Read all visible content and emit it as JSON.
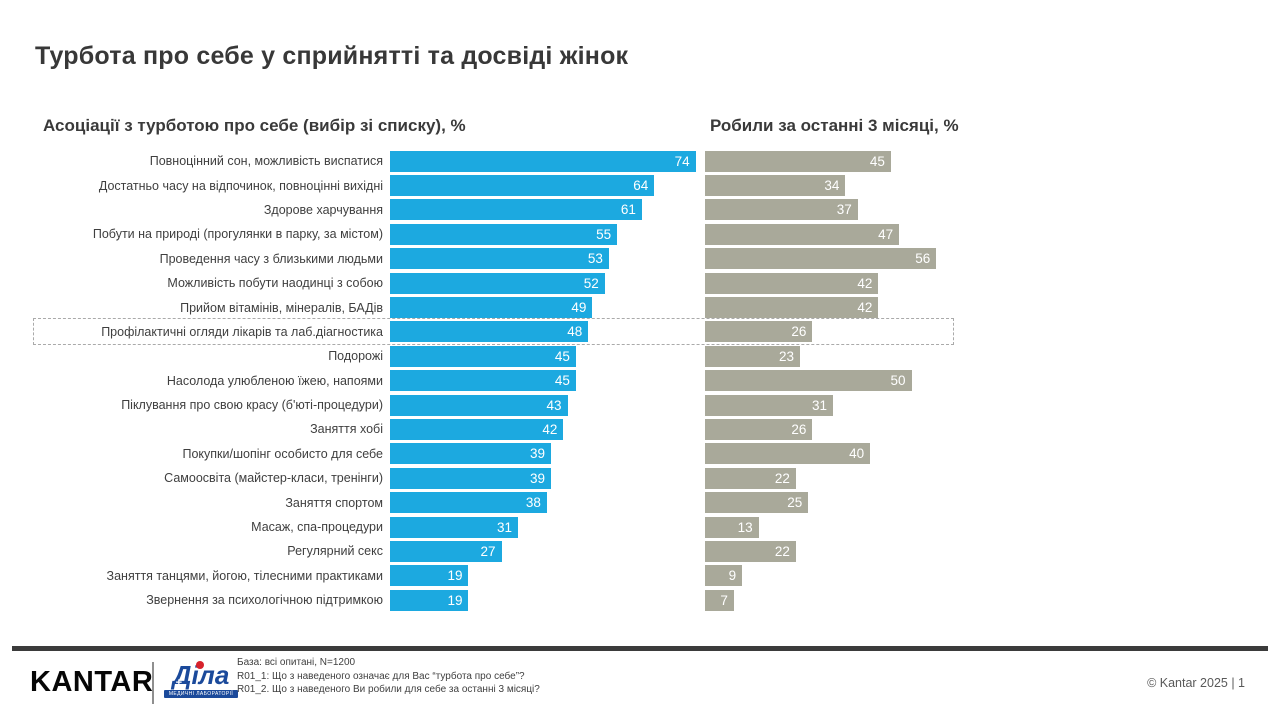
{
  "page": {
    "title": "Турбота про себе у сприйнятті та досвіді жінок",
    "footer": {
      "kantar_logo": "KANTAR",
      "dila_logo": "Діла",
      "dila_sub": "МЕДИЧНІ ЛАБОРАТОРІЇ",
      "base": "База: всі опитані, N=1200",
      "q1": "R01_1: Що з наведеного означає для Вас “турбота про себе”?",
      "q2": "R01_2. Що з наведеного Ви робили для себе за останні 3 місяці?",
      "copyright": "© Kantar 2025 | 1"
    }
  },
  "chart_data": {
    "type": "bar",
    "orientation": "horizontal",
    "title": "Турбота про себе у сприйнятті та досвіді жінок",
    "categories": [
      "Повноцінний сон, можливість виспатися",
      "Достатньо часу на відпочинок, повноцінні вихідні",
      "Здорове харчування",
      "Побути на природі (прогулянки в парку, за містом)",
      "Проведення часу з близькими людьми",
      "Можливість побути наодинці з собою",
      "Прийом вітамінів, мінералів, БАДів",
      "Профілактичні огляди лікарів та лаб.діагностика",
      "Подорожі",
      "Насолода улюбленою їжею, напоями",
      "Піклування про свою красу (б'юті-процедури)",
      "Заняття хобі",
      "Покупки/шопінг особисто для себе",
      "Самоосвіта (майстер-класи, тренінги)",
      "Заняття спортом",
      "Масаж, спа-процедури",
      "Регулярний секс",
      "Заняття танцями, йогою, тілесними практиками",
      "Звернення за психологічною підтримкою"
    ],
    "series": [
      {
        "name": "Асоціації з турботою про себе (вибір зі списку), %",
        "values": [
          74,
          64,
          61,
          55,
          53,
          52,
          49,
          48,
          45,
          45,
          43,
          42,
          39,
          39,
          38,
          31,
          27,
          19,
          19
        ],
        "color": "#1CA9E0"
      },
      {
        "name": "Робили за останні 3 місяці, %",
        "values": [
          45,
          34,
          37,
          47,
          56,
          42,
          42,
          26,
          23,
          50,
          31,
          26,
          40,
          22,
          25,
          13,
          22,
          9,
          7
        ],
        "color": "#A9A99A"
      }
    ],
    "highlight_index": 7,
    "xlim": [
      0,
      80
    ],
    "value_labels": "inside-end",
    "grid": false,
    "legend": "column-headers"
  }
}
